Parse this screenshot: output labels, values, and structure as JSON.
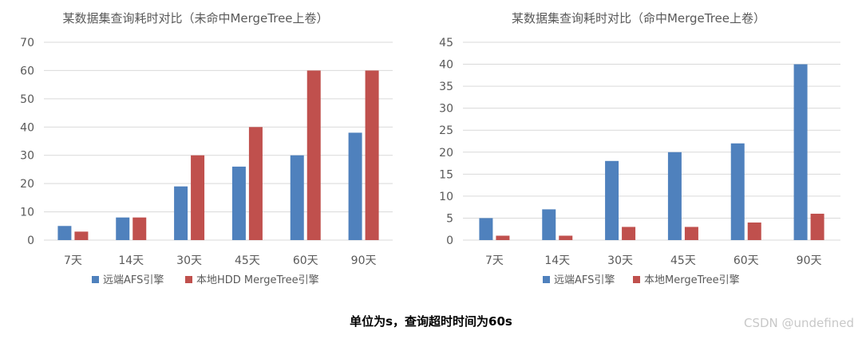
{
  "colors": {
    "blue": "#4f81bd",
    "red": "#c0504d",
    "grid": "#d9d9d9",
    "axis_text": "#595959",
    "title_text": "#595959"
  },
  "chart_data": [
    {
      "type": "bar",
      "title": "某数据集查询耗时对比（未命中MergeTree上卷）",
      "categories": [
        "7天",
        "14天",
        "30天",
        "45天",
        "60天",
        "90天"
      ],
      "ylim": [
        0,
        70
      ],
      "yticks": [
        0,
        10,
        20,
        30,
        40,
        50,
        60,
        70
      ],
      "grid": true,
      "legend": "bottom",
      "series": [
        {
          "name": "远端AFS引擎",
          "color": "#4f81bd",
          "values": [
            5,
            8,
            19,
            26,
            30,
            38
          ]
        },
        {
          "name": "本地HDD MergeTree引擎",
          "color": "#c0504d",
          "values": [
            3,
            8,
            30,
            40,
            60,
            60
          ]
        }
      ]
    },
    {
      "type": "bar",
      "title": "某数据集查询耗时对比（命中MergeTree上卷）",
      "categories": [
        "7天",
        "14天",
        "30天",
        "45天",
        "60天",
        "90天"
      ],
      "ylim": [
        0,
        45
      ],
      "yticks": [
        0,
        5,
        10,
        15,
        20,
        25,
        30,
        35,
        40,
        45
      ],
      "grid": true,
      "legend": "bottom",
      "series": [
        {
          "name": "远端AFS引擎",
          "color": "#4f81bd",
          "values": [
            5,
            7,
            18,
            20,
            22,
            40
          ]
        },
        {
          "name": "本地MergeTree引擎",
          "color": "#c0504d",
          "values": [
            1,
            1,
            3,
            3,
            4,
            6
          ]
        }
      ]
    }
  ],
  "footer": {
    "note": "单位为s，查询超时时间为60s",
    "watermark": "CSDN @undefined"
  }
}
